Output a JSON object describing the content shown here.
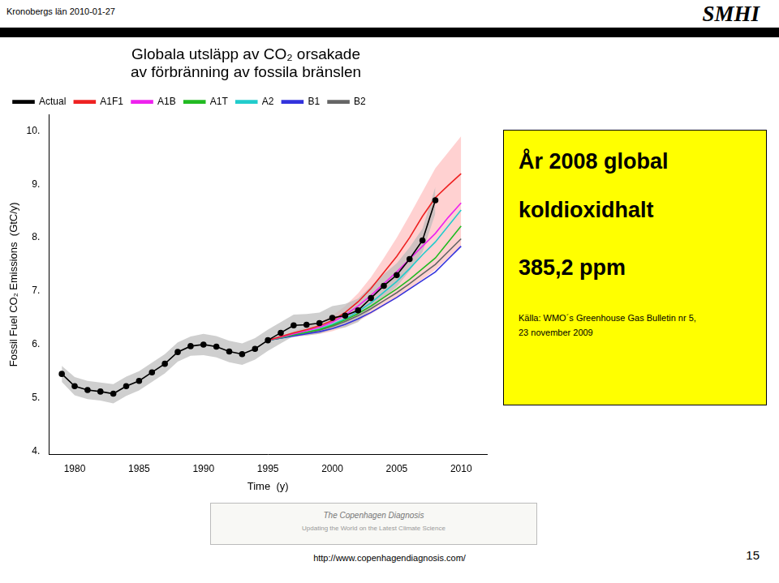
{
  "chart_data": {
    "type": "line",
    "title": [
      "Globala utsläpp av CO₂ orsakade",
      "av förbränning av fossila bränslen"
    ],
    "xlabel": "Time  (y)",
    "ylabel": "Fossil Fuel CO₂ Emissions  (GtC/y)",
    "xlim": [
      1978,
      2012
    ],
    "xticks": [
      1980,
      1985,
      1990,
      1995,
      2000,
      2005,
      2010
    ],
    "ylim": [
      3.95,
      10.3
    ],
    "yticks": [
      {
        "value": 4.0,
        "label": "4."
      },
      {
        "value": 5.0,
        "label": "5."
      },
      {
        "value": 6.0,
        "label": "6."
      },
      {
        "value": 7.0,
        "label": "7."
      },
      {
        "value": 8.0,
        "label": "8."
      },
      {
        "value": 9.0,
        "label": "9."
      },
      {
        "value": 10.0,
        "label": "10."
      }
    ],
    "grid": false,
    "legend": "upper left",
    "series": [
      {
        "name": "Actual",
        "color": "#000000",
        "marker": "circle",
        "x": [
          1979,
          1980,
          1981,
          1982,
          1983,
          1984,
          1985,
          1986,
          1987,
          1988,
          1989,
          1990,
          1991,
          1992,
          1993,
          1994,
          1995,
          1996,
          1997,
          1998,
          1999,
          2000,
          2001,
          2002,
          2003,
          2004,
          2005,
          2006,
          2007,
          2008
        ],
        "values": [
          5.45,
          5.22,
          5.15,
          5.12,
          5.08,
          5.22,
          5.32,
          5.48,
          5.64,
          5.86,
          5.97,
          6.0,
          5.96,
          5.87,
          5.82,
          5.92,
          6.08,
          6.22,
          6.36,
          6.37,
          6.4,
          6.5,
          6.54,
          6.64,
          6.87,
          7.1,
          7.3,
          7.6,
          7.95,
          8.7
        ]
      },
      {
        "name": "A1F1",
        "color": "#EE2222",
        "x": [
          1995,
          1996,
          1997,
          1998,
          1999,
          2000,
          2001,
          2002,
          2003,
          2004,
          2005,
          2006,
          2007,
          2008,
          2009,
          2010
        ],
        "values": [
          6.08,
          6.15,
          6.22,
          6.28,
          6.35,
          6.45,
          6.6,
          6.8,
          7.05,
          7.35,
          7.65,
          8.0,
          8.4,
          8.75,
          8.98,
          9.2
        ]
      },
      {
        "name": "A1B",
        "color": "#EE22EE",
        "x": [
          1995,
          1996,
          1997,
          1998,
          1999,
          2000,
          2001,
          2002,
          2003,
          2004,
          2005,
          2006,
          2007,
          2008,
          2009,
          2010
        ],
        "values": [
          6.08,
          6.14,
          6.2,
          6.26,
          6.32,
          6.42,
          6.55,
          6.72,
          6.92,
          7.14,
          7.36,
          7.6,
          7.84,
          8.08,
          8.38,
          8.65
        ]
      },
      {
        "name": "A1T",
        "color": "#22BB22",
        "x": [
          1995,
          1996,
          1997,
          1998,
          1999,
          2000,
          2001,
          2002,
          2003,
          2004,
          2005,
          2006,
          2007,
          2008,
          2009,
          2010
        ],
        "values": [
          6.08,
          6.13,
          6.18,
          6.23,
          6.28,
          6.36,
          6.46,
          6.58,
          6.72,
          6.88,
          7.04,
          7.22,
          7.42,
          7.62,
          7.92,
          8.22
        ]
      },
      {
        "name": "A2",
        "color": "#22CCCC",
        "x": [
          1995,
          1996,
          1997,
          1998,
          1999,
          2000,
          2001,
          2002,
          2003,
          2004,
          2005,
          2006,
          2007,
          2008,
          2009,
          2010
        ],
        "values": [
          6.08,
          6.13,
          6.18,
          6.23,
          6.29,
          6.38,
          6.48,
          6.62,
          6.78,
          6.98,
          7.18,
          7.42,
          7.68,
          7.92,
          8.22,
          8.52
        ]
      },
      {
        "name": "B1",
        "color": "#3333DD",
        "x": [
          1995,
          1996,
          1997,
          1998,
          1999,
          2000,
          2001,
          2002,
          2003,
          2004,
          2005,
          2006,
          2007,
          2008,
          2009,
          2010
        ],
        "values": [
          6.08,
          6.12,
          6.16,
          6.2,
          6.24,
          6.3,
          6.38,
          6.48,
          6.6,
          6.74,
          6.88,
          7.04,
          7.2,
          7.36,
          7.6,
          7.84
        ]
      },
      {
        "name": "B2",
        "color": "#666666",
        "x": [
          1995,
          1996,
          1997,
          1998,
          1999,
          2000,
          2001,
          2002,
          2003,
          2004,
          2005,
          2006,
          2007,
          2008,
          2009,
          2010
        ],
        "values": [
          6.08,
          6.12,
          6.17,
          6.22,
          6.27,
          6.34,
          6.43,
          6.54,
          6.67,
          6.82,
          6.97,
          7.14,
          7.32,
          7.5,
          7.74,
          7.98
        ]
      }
    ],
    "bands": [
      {
        "color": "#BBBBBB",
        "x": [
          1979,
          1980,
          1981,
          1982,
          1983,
          1984,
          1985,
          1986,
          1987,
          1988,
          1989,
          1990,
          1991,
          1992,
          1993,
          1994,
          1995,
          1996,
          1997,
          1998,
          1999,
          2000,
          2001,
          2002,
          2003,
          2004,
          2005,
          2006,
          2007,
          2008
        ],
        "lower": [
          5.3,
          5.05,
          4.98,
          4.95,
          4.9,
          5.04,
          5.14,
          5.3,
          5.46,
          5.68,
          5.79,
          5.8,
          5.76,
          5.67,
          5.62,
          5.72,
          5.88,
          6.02,
          6.16,
          6.17,
          6.2,
          6.28,
          6.32,
          6.42,
          6.65,
          6.88,
          7.08,
          7.38,
          7.73,
          8.45
        ],
        "upper": [
          5.6,
          5.39,
          5.32,
          5.29,
          5.26,
          5.4,
          5.5,
          5.66,
          5.82,
          6.04,
          6.15,
          6.2,
          6.16,
          6.07,
          6.02,
          6.12,
          6.28,
          6.42,
          6.56,
          6.57,
          6.6,
          6.72,
          6.76,
          6.86,
          7.09,
          7.32,
          7.52,
          7.82,
          8.17,
          8.95
        ]
      },
      {
        "color": "#FF9999",
        "x": [
          1995,
          1996,
          1997,
          1998,
          1999,
          2000,
          2001,
          2002,
          2003,
          2004,
          2005,
          2006,
          2007,
          2008,
          2009,
          2010
        ],
        "lower": [
          6.08,
          6.11,
          6.14,
          6.17,
          6.2,
          6.25,
          6.33,
          6.44,
          6.57,
          6.72,
          6.87,
          7.04,
          7.22,
          7.4,
          7.62,
          7.84
        ],
        "upper": [
          6.08,
          6.16,
          6.25,
          6.33,
          6.42,
          6.54,
          6.72,
          6.96,
          7.26,
          7.62,
          8.0,
          8.42,
          8.86,
          9.3,
          9.6,
          9.9
        ]
      }
    ],
    "annotations": {
      "header": "Kronobergs län 2010-01-27",
      "logo": "SMHI",
      "info_box": {
        "color": "#FFFF00",
        "lines": [
          "År 2008 global",
          "koldioxidhalt",
          "385,2 ppm"
        ],
        "source": [
          "Källa: WMO´s Greenhouse Gas Bulletin nr 5,",
          "23 november 2009"
        ]
      },
      "banner": [
        "The Copenhagen Diagnosis",
        "Updating the World on the Latest Climate Science"
      ],
      "url": "http://www.copenhagendiagnosis.com/",
      "page": "15"
    }
  }
}
